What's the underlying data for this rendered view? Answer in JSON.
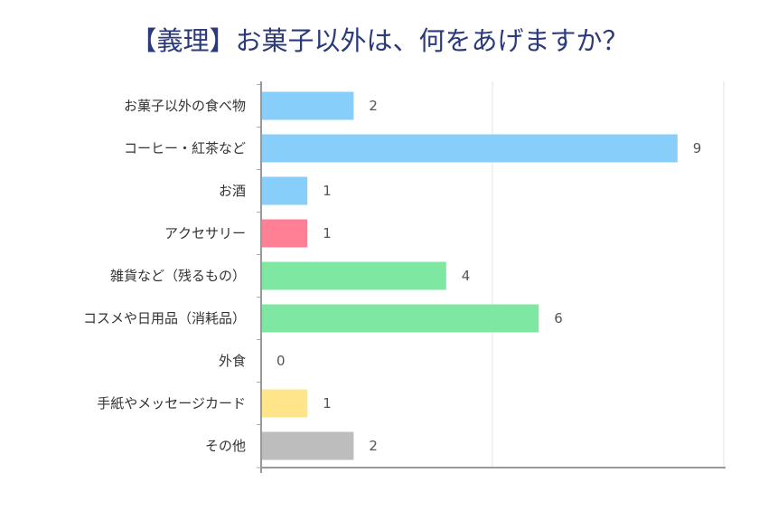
{
  "chart_data": {
    "type": "bar",
    "orientation": "horizontal",
    "title": "【義理】お菓子以外は、何をあげますか？",
    "categories": [
      "お菓子以外の食べ物",
      "コーヒー・紅茶など",
      "お酒",
      "アクセサリー",
      "雑貨など（残るもの）",
      "コスメや日用品（消耗品）",
      "外食",
      "手紙やメッセージカード",
      "その他"
    ],
    "values": [
      2,
      9,
      1,
      1,
      4,
      6,
      0,
      1,
      2
    ],
    "colors": [
      "#87cefa",
      "#87cefa",
      "#87cefa",
      "#ff8095",
      "#7ee8a2",
      "#7ee8a2",
      "#7ee8a2",
      "#ffe58a",
      "#bdbdbd"
    ],
    "xlim": [
      0,
      10
    ],
    "grid": true,
    "legend": "none"
  }
}
